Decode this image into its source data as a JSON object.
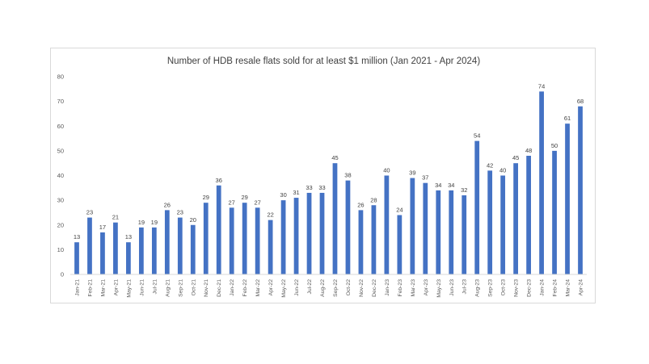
{
  "chart_data": {
    "type": "bar",
    "title": "Number of HDB resale flats sold for at least $1 million (Jan 2021 - Apr 2024)",
    "xlabel": "",
    "ylabel": "",
    "ylim": [
      0,
      80
    ],
    "yticks": [
      "0",
      "10",
      "20",
      "30",
      "40",
      "50",
      "60",
      "70",
      "80"
    ],
    "grid": false,
    "legend": "none",
    "bar_color": "#4472c4",
    "categories": [
      "Jan-21",
      "Feb-21",
      "Mar-21",
      "Apr-21",
      "May-21",
      "Jun-21",
      "Jul-21",
      "Aug-21",
      "Sep-21",
      "Oct-21",
      "Nov-21",
      "Dec-21",
      "Jan-22",
      "Feb-22",
      "Mar-22",
      "Apr-22",
      "May-22",
      "Jun-22",
      "Jul-22",
      "Aug-22",
      "Sep-22",
      "Oct-22",
      "Nov-22",
      "Dec-22",
      "Jan-23",
      "Feb-23",
      "Mar-23",
      "Apr-23",
      "May-23",
      "Jun-23",
      "Jul-23",
      "Aug-23",
      "Sep-23",
      "Oct-23",
      "Nov-23",
      "Dec-23",
      "Jan-24",
      "Feb-24",
      "Mar-24",
      "Apr-24"
    ],
    "values": [
      13,
      23,
      17,
      21,
      13,
      19,
      19,
      26,
      23,
      20,
      29,
      36,
      27,
      29,
      27,
      22,
      30,
      31,
      33,
      33,
      45,
      38,
      26,
      28,
      40,
      24,
      39,
      37,
      34,
      34,
      32,
      54,
      42,
      40,
      45,
      48,
      74,
      50,
      61,
      68
    ]
  }
}
